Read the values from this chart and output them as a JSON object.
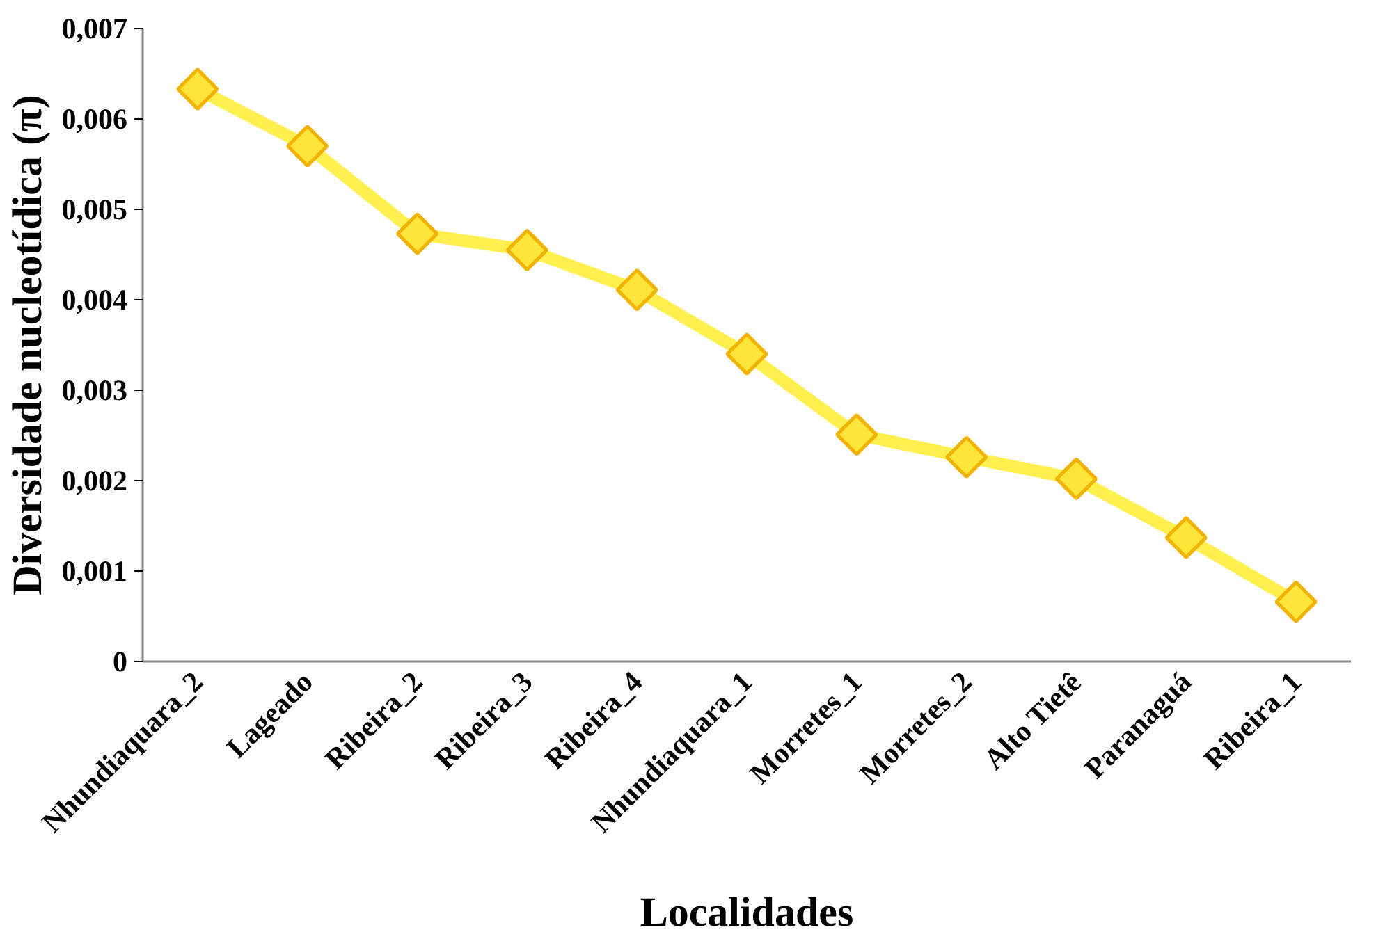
{
  "chart_data": {
    "type": "line",
    "xlabel": "Localidades",
    "ylabel": "Diversidade nucleotídica (π)",
    "categories": [
      "Nhundiaquara_2",
      "Lageado",
      "Ribeira_2",
      "Ribeira_3",
      "Ribeira_4",
      "Nhundiaquara_1",
      "Morretes_1",
      "Morretes_2",
      "Alto Tietê",
      "Paranaguá",
      "Ribeira_1"
    ],
    "series": [
      {
        "color": "#fff04f",
        "values": [
          0.00633,
          0.0057,
          0.00473,
          0.00455,
          0.00411,
          0.0034,
          0.00251,
          0.00226,
          0.00202,
          0.00137,
          0.00066
        ]
      }
    ],
    "ylim": [
      0,
      0.007
    ],
    "yticks": [
      {
        "value": 0,
        "label": "0"
      },
      {
        "value": 0.001,
        "label": "0,001"
      },
      {
        "value": 0.002,
        "label": "0,002"
      },
      {
        "value": 0.003,
        "label": "0,003"
      },
      {
        "value": 0.004,
        "label": "0,004"
      },
      {
        "value": 0.005,
        "label": "0,005"
      },
      {
        "value": 0.006,
        "label": "0,006"
      },
      {
        "value": 0.007,
        "label": "0,007"
      }
    ],
    "grid": false,
    "marker": "diamond",
    "line_style": "solid"
  }
}
